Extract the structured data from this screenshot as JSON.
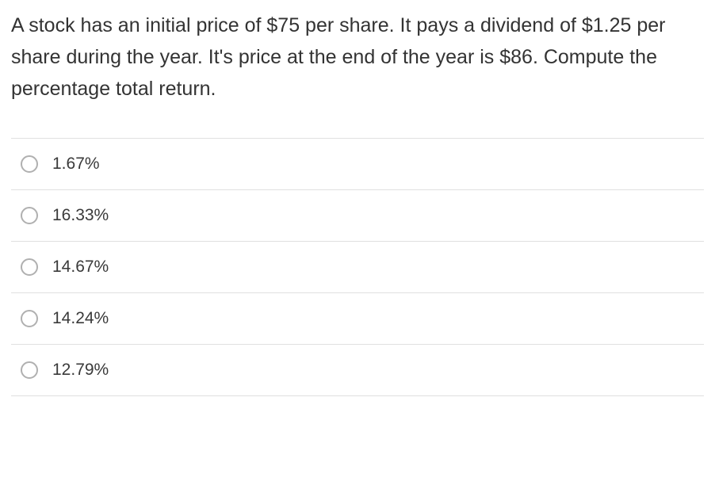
{
  "question": {
    "text": "A stock has an initial price of $75 per share. It pays a dividend of $1.25 per share during the year. It's price at the end of the year is $86. Compute the percentage total return.",
    "fontsize": 25,
    "color": "#333333",
    "line_height": 1.6
  },
  "options": [
    {
      "label": "1.67%",
      "selected": false
    },
    {
      "label": "16.33%",
      "selected": false
    },
    {
      "label": "14.67%",
      "selected": false
    },
    {
      "label": "14.24%",
      "selected": false
    },
    {
      "label": "12.79%",
      "selected": false
    }
  ],
  "styling": {
    "background_color": "#ffffff",
    "divider_color": "#e0e0e0",
    "radio_border_color": "#b0b0b0",
    "radio_size": 22,
    "option_fontsize": 21,
    "option_text_color": "#3a3a3a",
    "option_row_padding_v": 20
  }
}
